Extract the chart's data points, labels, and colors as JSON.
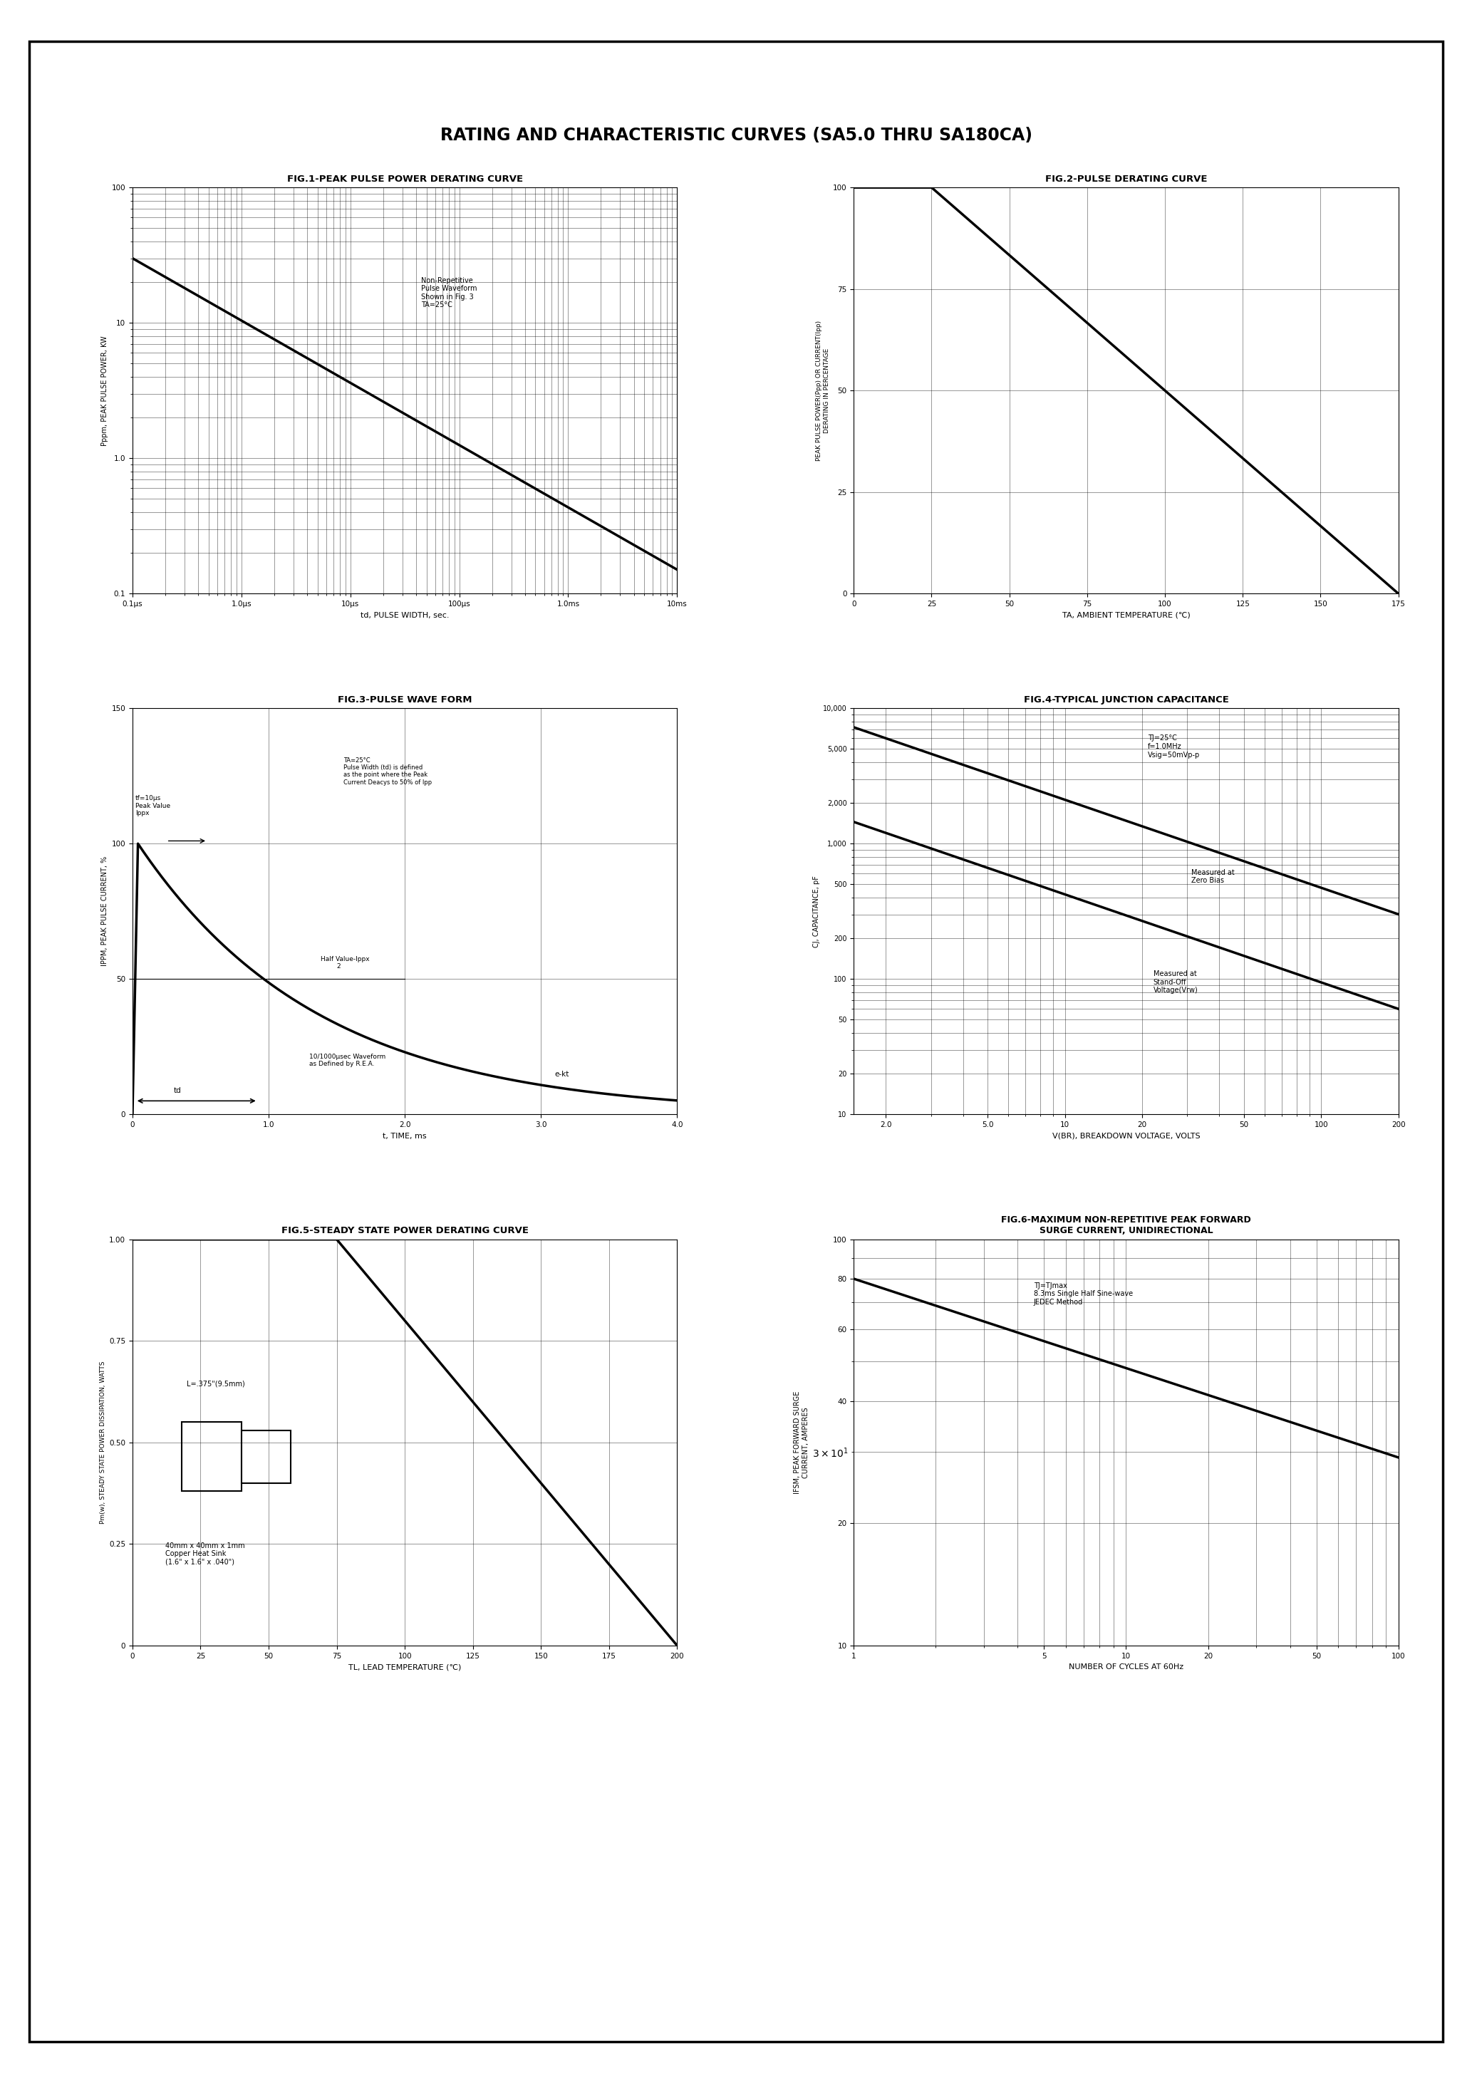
{
  "title": "RATING AND CHARACTERISTIC CURVES (SA5.0 THRU SA180CA)",
  "fig1_title": "FIG.1-PEAK PULSE POWER DERATING CURVE",
  "fig2_title": "FIG.2-PULSE DERATING CURVE",
  "fig3_title": "FIG.3-PULSE WAVE FORM",
  "fig4_title": "FIG.4-TYPICAL JUNCTION CAPACITANCE",
  "fig5_title": "FIG.5-STEADY STATE POWER DERATING CURVE",
  "fig6_title": "FIG.6-MAXIMUM NON-REPETITIVE PEAK FORWARD\nSURGE CURRENT, UNIDIRECTIONAL",
  "fig1_xlabel": "td, PULSE WIDTH, sec.",
  "fig1_ylabel": "Pppm, PEAK PULSE POWER, KW",
  "fig2_xlabel": "TA, AMBIENT TEMPERATURE (℃)",
  "fig2_ylabel": "PEAK PULSE POWER(Ppp) OR CURRENT(Ipp)\nDERATING IN PERCENTAGE",
  "fig3_xlabel": "t, TIME, ms",
  "fig3_ylabel": "IPPM, PEAK PULSE CURRENT, %",
  "fig4_xlabel": "V(BR), BREAKDOWN VOLTAGE, VOLTS",
  "fig4_ylabel": "CJ, CAPACITANCE, pF",
  "fig5_xlabel": "TL, LEAD TEMPERATURE (℃)",
  "fig5_ylabel": "Pm(w), STEADY STATE POWER DISSIPATION, WATTS",
  "fig6_xlabel": "NUMBER OF CYCLES AT 60Hz",
  "fig6_ylabel": "IFSM, PEAK FORWARD SURGE\nCURRENT, AMPERES"
}
